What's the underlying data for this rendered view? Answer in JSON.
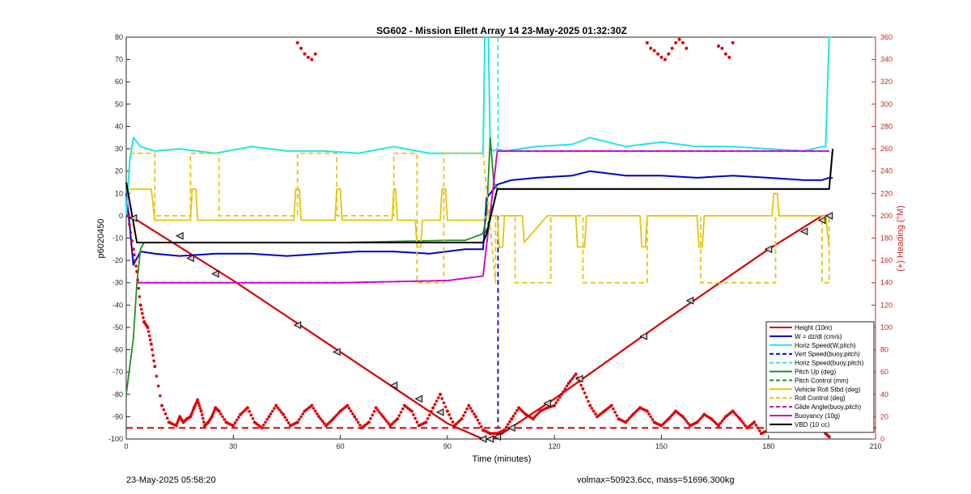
{
  "footer": {
    "timestamp": "23-May-2025 05:58:20",
    "vol_mass": "volmax=50923.6cc, mass=51696.300kg"
  },
  "colors": {
    "height": "#d50000",
    "w": "#0000cc",
    "horiz_speed": "#1fe6e6",
    "pitch": "#1e8f1e",
    "roll": "#e6c40c",
    "glide": "#cc00cc",
    "vbd": "#000000",
    "heading": "#dd0000"
  },
  "chart_data": {
    "type": "line",
    "title": "SG602 - Mission Ellett Array 14 23-May-2025 01:32:30Z",
    "xlabel": "Time (minutes)",
    "ylabel": "p6020450",
    "y2label": "(+) Heading (°M)",
    "xlim": [
      0,
      210
    ],
    "ylim": [
      -100,
      80
    ],
    "y2lim": [
      0,
      360
    ],
    "xticks": [
      "0",
      "30",
      "60",
      "90",
      "120",
      "150",
      "180",
      "210"
    ],
    "yticks": [
      "-100",
      "-90",
      "-80",
      "-70",
      "-60",
      "-50",
      "-40",
      "-30",
      "-20",
      "-10",
      "0",
      "10",
      "20",
      "30",
      "40",
      "50",
      "60",
      "70",
      "80"
    ],
    "y2ticks": [
      "0",
      "20",
      "40",
      "60",
      "80",
      "100",
      "120",
      "140",
      "160",
      "180",
      "200",
      "220",
      "240",
      "260",
      "280",
      "300",
      "320",
      "340",
      "360"
    ],
    "legend_position": "bottom-right",
    "legend": [
      {
        "label": "Height (10m)",
        "color": "#d50000",
        "dash": false
      },
      {
        "label": "W = dz/dt (cm/s)",
        "color": "#0000cc",
        "dash": false
      },
      {
        "label": "Horiz Speed(W,pitch)",
        "color": "#1fe6e6",
        "dash": false
      },
      {
        "label": "Vert Speed(buoy,pitch)",
        "color": "#0000cc",
        "dash": true
      },
      {
        "label": "Horiz Speed(buoy,pitch)",
        "color": "#1fe6e6",
        "dash": true
      },
      {
        "label": "Pitch Up (deg)",
        "color": "#1e8f1e",
        "dash": false
      },
      {
        "label": "Pitch Control (mm)",
        "color": "#1e8f1e",
        "dash": true
      },
      {
        "label": "Vehicle Roll Stbd (deg)",
        "color": "#e6c40c",
        "dash": false
      },
      {
        "label": "Roll Control (deg)",
        "color": "#e6c40c",
        "dash": true
      },
      {
        "label": "Glide Angle(buoy,pitch)",
        "color": "#cc00cc",
        "dash": true
      },
      {
        "label": "Buoyancy (10g)",
        "color": "#cc00cc",
        "dash": false
      },
      {
        "label": "VBD (10 cc)",
        "color": "#000000",
        "dash": false
      }
    ],
    "series": [
      {
        "name": "Height (10m)",
        "color": "#d50000",
        "dash": false,
        "width": 2.2,
        "x": [
          0,
          1,
          2,
          30,
          60,
          90,
          100,
          103,
          104,
          120,
          150,
          180,
          195,
          198
        ],
        "y": [
          5,
          -1,
          -1,
          -29,
          -61,
          -93,
          -100,
          -100,
          -99,
          -82,
          -48,
          -15,
          0,
          0
        ]
      },
      {
        "name": "W = dz/dt (cm/s)",
        "color": "#0000cc",
        "dash": false,
        "width": 2,
        "x": [
          0,
          1,
          2,
          4,
          8,
          15,
          25,
          35,
          45,
          55,
          65,
          75,
          85,
          95,
          100,
          101,
          103,
          104,
          106,
          108,
          115,
          125,
          130,
          140,
          150,
          160,
          170,
          180,
          190,
          195,
          197,
          198
        ],
        "y": [
          10,
          -5,
          -22,
          -16,
          -17,
          -18,
          -17,
          -17,
          -18,
          -17,
          -16,
          -16,
          -17,
          -15,
          -15,
          8,
          12,
          14,
          15,
          16,
          17,
          18,
          20,
          18,
          18,
          17,
          18,
          17,
          16,
          16,
          17,
          17
        ]
      },
      {
        "name": "Horiz Speed(W,pitch)",
        "color": "#1fe6e6",
        "dash": false,
        "width": 2,
        "x": [
          0,
          1,
          2,
          4,
          8,
          15,
          25,
          35,
          45,
          55,
          65,
          75,
          85,
          95,
          100,
          100.5,
          101.5,
          102,
          103,
          104,
          106,
          115,
          125,
          130,
          140,
          150,
          160,
          170,
          180,
          190,
          195,
          196,
          197,
          198
        ],
        "y": [
          0,
          25,
          35,
          31,
          29,
          30,
          28,
          31,
          29,
          29,
          28,
          31,
          28,
          28,
          28,
          80,
          80,
          30,
          29,
          30,
          29,
          31,
          32,
          35,
          31,
          33,
          31,
          31,
          30,
          29,
          31,
          31,
          80,
          80
        ]
      },
      {
        "name": "Vert Speed(buoy,pitch)",
        "color": "#0000cc",
        "dash": true,
        "width": 1.8,
        "x": [
          103.5,
          104.2,
          104.2
        ],
        "y": [
          -95,
          -95,
          0
        ]
      },
      {
        "name": "Horiz Speed(buoy,pitch)",
        "color": "#1fe6e6",
        "dash": true,
        "width": 1.8,
        "x": [
          104.2,
          104.2
        ],
        "y": [
          80,
          29
        ]
      },
      {
        "name": "Pitch Up (deg)",
        "color": "#1e8f1e",
        "dash": false,
        "width": 1.8,
        "x": [
          0,
          2,
          3,
          4,
          5,
          6,
          8,
          10,
          15,
          30,
          60,
          90,
          95,
          100,
          101,
          102,
          103,
          104,
          106,
          110,
          150,
          190,
          195,
          197,
          198
        ],
        "y": [
          -80,
          -55,
          -30,
          -15,
          -12,
          -12,
          -12,
          -12,
          -12,
          -12,
          -12,
          -11,
          -11,
          -8,
          0,
          35,
          15,
          12,
          12,
          12,
          12,
          12,
          12,
          12,
          30
        ]
      },
      {
        "name": "Pitch Control (mm)",
        "color": "#1e8f1e",
        "dash": true,
        "width": 1.8,
        "x": [
          3,
          30,
          60,
          90,
          100,
          104,
          150,
          197
        ],
        "y": [
          -12,
          -12,
          -12,
          -12,
          -12,
          12,
          12,
          12
        ]
      },
      {
        "name": "Vehicle Roll Stbd (deg)",
        "color": "#e6c40c",
        "dash": false,
        "width": 1.8,
        "x": [
          1,
          2,
          7,
          8,
          15,
          18,
          18.5,
          19.5,
          20,
          25,
          47,
          47.5,
          48.5,
          49,
          58.5,
          59,
          60,
          60.5,
          74.5,
          75,
          75.5,
          76,
          78,
          81,
          81.5,
          82.5,
          83,
          88,
          88.5,
          89.5,
          90,
          100,
          101,
          103,
          104,
          104.5,
          105.5,
          106,
          110,
          111,
          111.5,
          118,
          126,
          126.5,
          128.5,
          129,
          144,
          144.5,
          145.5,
          146,
          160,
          160.5,
          161.5,
          162,
          180,
          181,
          181.5,
          182.5,
          183,
          190,
          195,
          196,
          197
        ],
        "y": [
          12,
          12,
          12,
          -2,
          -2,
          -2,
          12,
          12,
          -2,
          -2,
          -2,
          12,
          12,
          -2,
          -2,
          12,
          12,
          -2,
          -2,
          12,
          12,
          -2,
          -2,
          -2,
          -14,
          -14,
          -2,
          -2,
          12,
          12,
          -2,
          -2,
          0,
          0,
          0,
          -14,
          -14,
          0,
          0,
          0,
          -12,
          0,
          0,
          -14,
          -14,
          0,
          0,
          -14,
          -14,
          0,
          0,
          -14,
          -14,
          0,
          0,
          0,
          10,
          10,
          0,
          0,
          0,
          0,
          -14
        ]
      },
      {
        "name": "Roll Control (deg)",
        "color": "#e6c40c",
        "dash": true,
        "width": 1.8,
        "x": [
          1,
          4,
          8,
          8,
          18,
          18,
          26,
          26,
          48,
          48,
          59,
          59,
          75,
          75,
          81.5,
          81.5,
          89,
          89,
          100,
          103.5,
          103.5,
          109,
          109,
          119,
          119,
          128,
          128,
          146,
          146,
          161,
          161,
          182,
          182,
          190,
          195,
          195,
          197,
          197
        ],
        "y": [
          28,
          28,
          28,
          0,
          0,
          28,
          28,
          0,
          0,
          28,
          28,
          0,
          0,
          28,
          28,
          -30,
          -30,
          28,
          28,
          -30,
          0,
          0,
          -30,
          -30,
          0,
          0,
          -30,
          -30,
          0,
          0,
          -30,
          -30,
          0,
          0,
          0,
          -30,
          -30,
          0
        ]
      },
      {
        "name": "Glide Angle(buoy,pitch)",
        "color": "#cc00cc",
        "dash": true,
        "width": 1.8,
        "x": [
          3,
          30,
          60,
          90,
          100,
          104,
          130,
          160,
          197
        ],
        "y": [
          -30,
          -30,
          -30,
          -29,
          -27,
          29,
          29,
          29,
          29
        ]
      },
      {
        "name": "Buoyancy (10g)",
        "color": "#cc00cc",
        "dash": false,
        "width": 1.8,
        "x": [
          3,
          30,
          60,
          90,
          100,
          104,
          130,
          160,
          197
        ],
        "y": [
          -30,
          -30,
          -30,
          -29,
          -27,
          29,
          29,
          29,
          29
        ]
      },
      {
        "name": "VBD (10 cc)",
        "color": "#000000",
        "dash": false,
        "width": 2,
        "x": [
          0,
          3,
          5,
          100,
          101,
          104,
          197,
          198
        ],
        "y": [
          15,
          -12,
          -12,
          -12,
          -8,
          12,
          12,
          30
        ]
      }
    ],
    "heading": {
      "name": "(+) Heading (°M)",
      "color": "#dd0000",
      "axis": "right",
      "x": [
        0.5,
        2,
        3,
        4,
        5,
        6,
        7,
        8,
        10,
        12,
        14,
        15,
        16,
        17,
        18,
        19,
        20,
        21,
        22,
        23,
        24,
        25,
        26,
        28,
        30,
        32,
        34,
        36,
        38,
        40,
        42,
        44,
        46,
        48,
        50,
        52,
        54,
        56,
        58,
        60,
        62,
        64,
        66,
        68,
        70,
        72,
        74,
        76,
        78,
        80,
        82,
        84,
        86,
        88,
        90,
        92,
        94,
        96,
        98,
        100,
        102,
        104,
        106,
        108,
        110,
        112,
        114,
        116,
        118,
        120,
        122,
        124,
        126,
        128,
        130,
        132,
        134,
        136,
        138,
        140,
        142,
        144,
        146,
        148,
        150,
        152,
        154,
        156,
        158,
        160,
        162,
        164,
        166,
        168,
        170,
        172,
        174,
        176,
        178,
        180,
        182,
        184,
        186,
        188,
        190,
        192,
        194,
        196,
        197
      ],
      "y": [
        200,
        170,
        150,
        120,
        105,
        100,
        85,
        65,
        30,
        15,
        12,
        20,
        15,
        18,
        20,
        28,
        35,
        25,
        12,
        15,
        20,
        28,
        25,
        15,
        12,
        22,
        28,
        15,
        10,
        20,
        30,
        22,
        12,
        15,
        25,
        30,
        20,
        12,
        18,
        25,
        30,
        20,
        10,
        15,
        28,
        20,
        12,
        18,
        30,
        25,
        12,
        15,
        28,
        40,
        25,
        12,
        18,
        30,
        20,
        8,
        5,
        5,
        8,
        18,
        28,
        22,
        18,
        25,
        28,
        30,
        40,
        50,
        58,
        45,
        30,
        20,
        25,
        30,
        18,
        15,
        22,
        28,
        25,
        15,
        12,
        18,
        25,
        20,
        12,
        15,
        22,
        18,
        12,
        20,
        25,
        18,
        10,
        15,
        5,
        8,
        12,
        18,
        10,
        15,
        20,
        25,
        15,
        5,
        2
      ]
    },
    "heading_tops": {
      "x": [
        48,
        49,
        50,
        51,
        52,
        53,
        146,
        147,
        148,
        149,
        150,
        151,
        152,
        153,
        154,
        155,
        156,
        157,
        166,
        167,
        168,
        169,
        170
      ],
      "y": [
        355,
        350,
        345,
        342,
        340,
        345,
        355,
        350,
        348,
        345,
        342,
        340,
        345,
        350,
        355,
        358,
        355,
        350,
        352,
        350,
        345,
        342,
        355
      ]
    },
    "markers": [
      {
        "x": 2,
        "y": -1
      },
      {
        "x": 15,
        "y": -9
      },
      {
        "x": 18,
        "y": -19
      },
      {
        "x": 25,
        "y": -26
      },
      {
        "x": 48,
        "y": -49
      },
      {
        "x": 59,
        "y": -61
      },
      {
        "x": 75,
        "y": -76
      },
      {
        "x": 82,
        "y": -82
      },
      {
        "x": 88,
        "y": -88
      },
      {
        "x": 100,
        "y": -100
      },
      {
        "x": 102,
        "y": -100
      },
      {
        "x": 104,
        "y": -99
      },
      {
        "x": 108,
        "y": -95
      },
      {
        "x": 118,
        "y": -84
      },
      {
        "x": 127,
        "y": -73
      },
      {
        "x": 145,
        "y": -54
      },
      {
        "x": 158,
        "y": -38
      },
      {
        "x": 180,
        "y": -15
      },
      {
        "x": 190,
        "y": -7
      },
      {
        "x": 195,
        "y": -2
      },
      {
        "x": 197,
        "y": 0
      }
    ],
    "heading_ref": {
      "value": 10,
      "color": "#dd0000",
      "dash": true
    }
  }
}
